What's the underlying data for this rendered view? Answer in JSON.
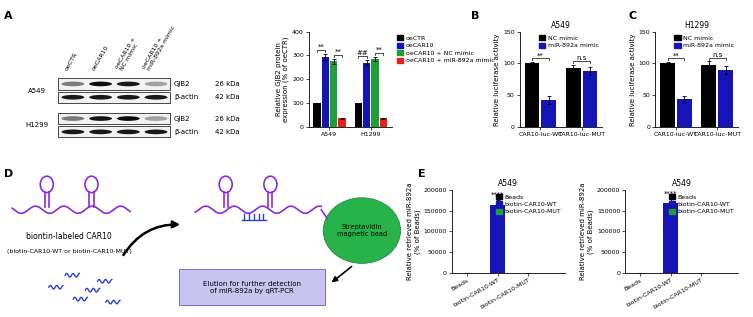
{
  "panel_labels": [
    "A",
    "B",
    "C",
    "D",
    "E"
  ],
  "blot": {
    "cell_lines": [
      "A549",
      "H1299"
    ],
    "columns": [
      "oeCTR",
      "oeCAR10",
      "oeCAR10 +\nNC mimic",
      "oeCAR10 +\nmiR-892a mimic"
    ],
    "rows": [
      {
        "protein": "GJB2",
        "size": "26 kDa"
      },
      {
        "protein": "β-actin",
        "size": "42 kDa"
      }
    ]
  },
  "diagram": {
    "probe_label": "biontin-labeled CAR10",
    "probe_note": "(biotin-CAR10-WT or biotin-CAR10-MUT)",
    "bead": "Streptavidin\nmagnetic bead",
    "elution": "Elution for further detection\nof miR-892a by qRT-PCR"
  },
  "chart_data": [
    {
      "type": "bar",
      "ylabel": "Relative GJB2 protein\nexpression (% of oeCTR)",
      "categories": [
        "A549",
        "H1299"
      ],
      "series": [
        {
          "name": "oeCTR",
          "color": "#000000",
          "values": [
            100,
            100
          ],
          "errors": [
            2,
            2
          ]
        },
        {
          "name": "oeCAR10",
          "color": "#1414b8",
          "values": [
            295,
            270
          ],
          "errors": [
            12,
            10
          ]
        },
        {
          "name": "oeCAR10 + NC mimic",
          "color": "#1f9e3a",
          "values": [
            275,
            285
          ],
          "errors": [
            12,
            10
          ]
        },
        {
          "name": "oeCAR10 + miR-892a mimic",
          "color": "#e8201c",
          "values": [
            35,
            35
          ],
          "errors": [
            4,
            3
          ]
        }
      ],
      "significance": [
        {
          "category": 0,
          "from": 0,
          "to": 1,
          "label": "**"
        },
        {
          "category": 0,
          "from": 2,
          "to": 3,
          "label": "**"
        },
        {
          "category": 1,
          "from": 0,
          "to": 1,
          "label": "##"
        },
        {
          "category": 1,
          "from": 2,
          "to": 3,
          "label": "**"
        }
      ],
      "ylim": [
        0,
        400
      ],
      "yticks": [
        0,
        100,
        200,
        300,
        400
      ],
      "legend": "upper left"
    },
    {
      "type": "bar",
      "title": "A549",
      "ylabel": "Relative luciferase activity",
      "categories": [
        "CAR10-luc-WT",
        "CAR10-luc-MUT"
      ],
      "series": [
        {
          "name": "NC mimic",
          "color": "#000000",
          "values": [
            100,
            92
          ],
          "errors": [
            2,
            6
          ]
        },
        {
          "name": "miR-892a mimic",
          "color": "#1414b8",
          "values": [
            42,
            88
          ],
          "errors": [
            6,
            6
          ]
        }
      ],
      "significance": [
        {
          "category": 0,
          "from": 0,
          "to": 1,
          "label": "**"
        },
        {
          "category": 1,
          "from": 0,
          "to": 1,
          "label": "n.s"
        }
      ],
      "ylim": [
        0,
        150
      ],
      "yticks": [
        0,
        50,
        100,
        150
      ],
      "legend": "upper right"
    },
    {
      "type": "bar",
      "title": "H1299",
      "ylabel": "Relative luciferase activity",
      "categories": [
        "CAR10-luc-WT",
        "CAR10-luc-MUT"
      ],
      "series": [
        {
          "name": "NC mimic",
          "color": "#000000",
          "values": [
            100,
            97
          ],
          "errors": [
            2,
            6
          ]
        },
        {
          "name": "miR-892a mimic",
          "color": "#1414b8",
          "values": [
            44,
            90
          ],
          "errors": [
            5,
            6
          ]
        }
      ],
      "significance": [
        {
          "category": 0,
          "from": 0,
          "to": 1,
          "label": "**"
        },
        {
          "category": 1,
          "from": 0,
          "to": 1,
          "label": "n.s"
        }
      ],
      "ylim": [
        0,
        150
      ],
      "yticks": [
        0,
        50,
        100,
        150
      ],
      "legend": "upper right"
    },
    {
      "type": "bar",
      "title": "A549",
      "ylabel": "Relative retrieved miR-892a\n(% of Beads)",
      "categories": [
        "Beads",
        "biotin-CAR10-WT",
        "biotin-CAR10-MUT"
      ],
      "values": [
        100,
        165000,
        100
      ],
      "errors": [
        0,
        12000,
        0
      ],
      "colors": [
        "#000000",
        "#1414b8",
        "#1f9e3a"
      ],
      "annotations": [
        {
          "category": 1,
          "label": "****"
        }
      ],
      "ylim": [
        0,
        200000
      ],
      "yticks": [
        0,
        50000,
        100000,
        150000,
        200000
      ],
      "legend": "upper right"
    },
    {
      "type": "bar",
      "title": "A549",
      "ylabel": "Relative retrieved miR-892a\n(% of Beads)",
      "categories": [
        "Beads",
        "biotin-CAR10-WT",
        "biotin-CAR10-MUT"
      ],
      "values": [
        100,
        168000,
        100
      ],
      "errors": [
        0,
        11000,
        0
      ],
      "colors": [
        "#000000",
        "#1414b8",
        "#1f9e3a"
      ],
      "annotations": [
        {
          "category": 1,
          "label": "****"
        }
      ],
      "ylim": [
        0,
        200000
      ],
      "yticks": [
        0,
        50000,
        100000,
        150000,
        200000
      ],
      "legend": "upper right"
    }
  ]
}
